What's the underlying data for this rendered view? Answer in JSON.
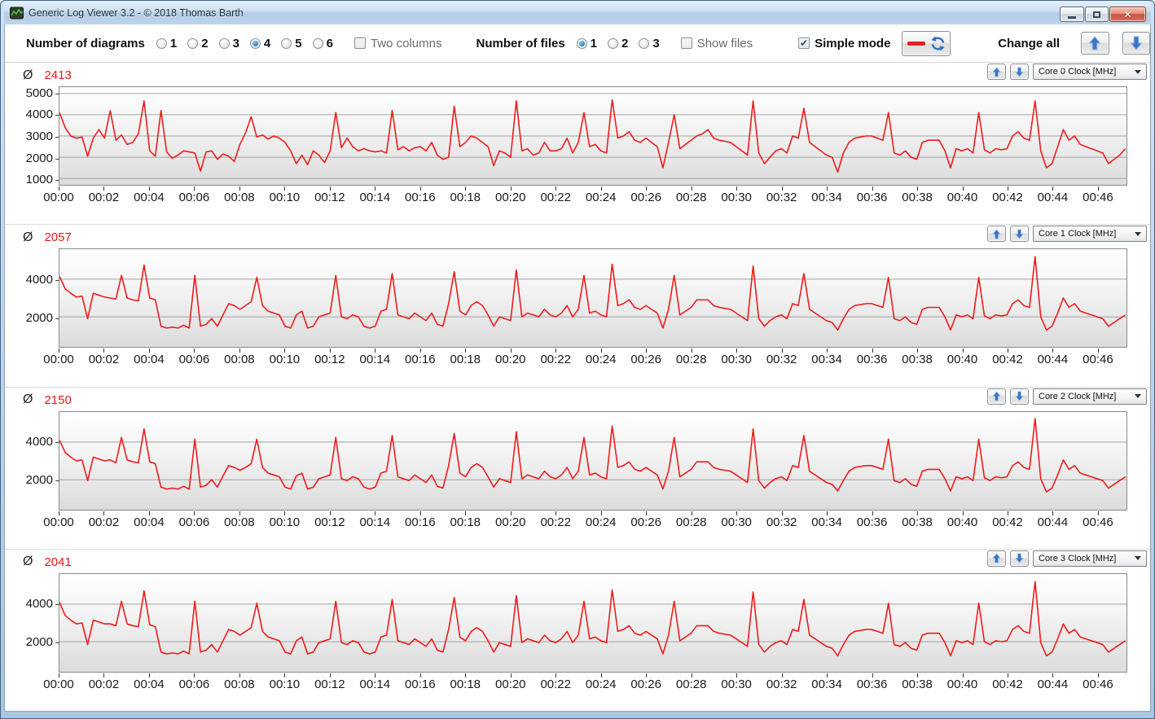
{
  "window": {
    "title": "Generic Log Viewer 3.2 - © 2018 Thomas Barth"
  },
  "toolbar": {
    "diagrams_label": "Number of diagrams",
    "diagram_options": [
      "1",
      "2",
      "3",
      "4",
      "5",
      "6"
    ],
    "diagrams_selected": "4",
    "two_columns_label": "Two columns",
    "two_columns_checked": false,
    "files_label": "Number of files",
    "file_options": [
      "1",
      "2",
      "3"
    ],
    "files_selected": "1",
    "show_files_label": "Show files",
    "show_files_checked": false,
    "simple_mode_label": "Simple mode",
    "simple_mode_checked": true,
    "change_all_label": "Change all"
  },
  "charts_common": {
    "avg_symbol": "Ø",
    "x_total_min": 47.3,
    "x_step_min": 0.25
  },
  "colors": {
    "series_line": "#ee1c1c",
    "avg_value": "#e41b17",
    "gridline": "#a3a3a3",
    "accent_blue": "#3a76c4"
  },
  "chart_data": [
    {
      "type": "line",
      "title": "Core 0 Clock [MHz]",
      "average": "2413",
      "dropdown_value": "Core 0 Clock [MHz]",
      "ylim": [
        700,
        5300
      ],
      "y_ticks": [
        1000,
        2000,
        3000,
        4000,
        5000
      ],
      "x_tick_labels": [
        "00:00",
        "00:02",
        "00:04",
        "00:06",
        "00:08",
        "00:10",
        "00:12",
        "00:14",
        "00:16",
        "00:18",
        "00:20",
        "00:22",
        "00:24",
        "00:26",
        "00:28",
        "00:30",
        "00:32",
        "00:34",
        "00:36",
        "00:38",
        "00:40",
        "00:42",
        "00:44",
        "00:46"
      ],
      "values": [
        4100,
        3400,
        3000,
        2900,
        2950,
        2050,
        2900,
        3300,
        2900,
        4200,
        2800,
        3050,
        2600,
        2700,
        3100,
        4650,
        2300,
        2050,
        4200,
        2250,
        1950,
        2100,
        2300,
        2250,
        2200,
        1350,
        2250,
        2300,
        1900,
        2150,
        2050,
        1800,
        2600,
        3150,
        3900,
        2950,
        3050,
        2850,
        3000,
        2900,
        2700,
        2300,
        1700,
        2100,
        1650,
        2300,
        2100,
        1750,
        2300,
        4100,
        2450,
        2900,
        2500,
        2300,
        2400,
        2300,
        2250,
        2300,
        2200,
        4200,
        2350,
        2500,
        2300,
        2450,
        2500,
        2300,
        2700,
        2100,
        1900,
        2000,
        4400,
        2500,
        2700,
        3000,
        2900,
        2700,
        2500,
        1600,
        2300,
        2200,
        2000,
        4650,
        2300,
        2400,
        2100,
        2200,
        2700,
        2300,
        2300,
        2400,
        2900,
        2200,
        2700,
        4100,
        2500,
        2600,
        2300,
        2200,
        4700,
        2900,
        3000,
        3200,
        2800,
        2700,
        2900,
        2700,
        2500,
        1500,
        2700,
        4000,
        2400,
        2600,
        2800,
        3000,
        3100,
        3300,
        2900,
        2800,
        2750,
        2700,
        2500,
        2300,
        2100,
        4650,
        2200,
        1700,
        2000,
        2300,
        2400,
        2200,
        3000,
        2900,
        4300,
        2700,
        2500,
        2300,
        2100,
        2000,
        1300,
        2200,
        2700,
        2900,
        2950,
        3000,
        3000,
        2900,
        2800,
        4100,
        2200,
        2100,
        2300,
        2000,
        1900,
        2700,
        2800,
        2800,
        2800,
        2300,
        1500,
        2400,
        2300,
        2400,
        2200,
        4100,
        2350,
        2200,
        2400,
        2350,
        2400,
        3000,
        3200,
        2900,
        2800,
        4650,
        2300,
        1500,
        1700,
        2500,
        3300,
        2800,
        3000,
        2600,
        2500,
        2400,
        2300,
        2200,
        1700,
        1900,
        2100,
        2400
      ]
    },
    {
      "type": "line",
      "title": "Core 1 Clock [MHz]",
      "average": "2057",
      "dropdown_value": "Core 1 Clock [MHz]",
      "ylim": [
        400,
        5600
      ],
      "y_ticks": [
        2000,
        4000
      ],
      "x_tick_labels": [
        "00:00",
        "00:02",
        "00:04",
        "00:06",
        "00:08",
        "00:10",
        "00:12",
        "00:14",
        "00:16",
        "00:18",
        "00:20",
        "00:22",
        "00:24",
        "00:26",
        "00:28",
        "00:30",
        "00:32",
        "00:34",
        "00:36",
        "00:38",
        "00:40",
        "00:42",
        "00:44",
        "00:46"
      ],
      "values": [
        4150,
        3500,
        3250,
        3050,
        3100,
        1900,
        3250,
        3150,
        3050,
        3000,
        2950,
        4200,
        3000,
        2900,
        2850,
        4750,
        3000,
        2900,
        1500,
        1400,
        1450,
        1400,
        1550,
        1400,
        4200,
        1500,
        1600,
        1900,
        1500,
        2100,
        2700,
        2600,
        2400,
        2600,
        2800,
        4100,
        2600,
        2300,
        2200,
        2100,
        1500,
        1400,
        2100,
        2300,
        1400,
        1500,
        2000,
        2100,
        2200,
        4200,
        2000,
        1900,
        2100,
        2000,
        1500,
        1400,
        1500,
        2300,
        2400,
        4300,
        2100,
        2000,
        1900,
        2200,
        2000,
        1800,
        2200,
        1600,
        1500,
        2700,
        4400,
        2300,
        2100,
        2600,
        2800,
        2600,
        2100,
        1500,
        2000,
        1900,
        1800,
        4500,
        2000,
        2200,
        2100,
        2000,
        2400,
        2100,
        2000,
        2200,
        2600,
        2000,
        2400,
        4200,
        2200,
        2300,
        2100,
        2000,
        4800,
        2600,
        2700,
        2900,
        2500,
        2400,
        2600,
        2400,
        2200,
        1400,
        2400,
        4200,
        2100,
        2300,
        2500,
        2900,
        2900,
        2900,
        2600,
        2500,
        2450,
        2400,
        2200,
        2000,
        1800,
        4700,
        1900,
        1500,
        1800,
        2000,
        2100,
        1900,
        2700,
        2600,
        4300,
        2400,
        2200,
        2000,
        1800,
        1700,
        1300,
        1900,
        2400,
        2600,
        2650,
        2700,
        2700,
        2600,
        2500,
        4100,
        1900,
        1800,
        2000,
        1700,
        1600,
        2400,
        2500,
        2500,
        2500,
        2000,
        1300,
        2100,
        2000,
        2100,
        1900,
        4100,
        2050,
        1900,
        2100,
        2050,
        2100,
        2700,
        2900,
        2600,
        2500,
        5200,
        2000,
        1300,
        1500,
        2200,
        3000,
        2500,
        2700,
        2300,
        2200,
        2100,
        2000,
        1900,
        1500,
        1700,
        1900,
        2100
      ]
    },
    {
      "type": "line",
      "title": "Core 2 Clock [MHz]",
      "average": "2150",
      "dropdown_value": "Core 2 Clock [MHz]",
      "ylim": [
        400,
        5600
      ],
      "y_ticks": [
        2000,
        4000
      ],
      "x_tick_labels": [
        "00:00",
        "00:02",
        "00:04",
        "00:06",
        "00:08",
        "00:10",
        "00:12",
        "00:14",
        "00:16",
        "00:18",
        "00:20",
        "00:22",
        "00:24",
        "00:26",
        "00:28",
        "00:30",
        "00:32",
        "00:34",
        "00:36",
        "00:38",
        "00:40",
        "00:42",
        "00:44",
        "00:46"
      ],
      "values": [
        4100,
        3450,
        3200,
        3000,
        3050,
        1950,
        3200,
        3100,
        3000,
        3050,
        2900,
        4250,
        3050,
        2950,
        2900,
        4700,
        2950,
        2850,
        1600,
        1500,
        1550,
        1500,
        1650,
        1500,
        4150,
        1600,
        1700,
        2000,
        1600,
        2200,
        2750,
        2650,
        2500,
        2650,
        2850,
        4150,
        2650,
        2350,
        2250,
        2150,
        1600,
        1500,
        2200,
        2350,
        1500,
        1600,
        2050,
        2150,
        2250,
        4250,
        2050,
        1950,
        2150,
        2050,
        1600,
        1500,
        1600,
        2350,
        2450,
        4350,
        2150,
        2050,
        1950,
        2250,
        2050,
        1850,
        2250,
        1650,
        1550,
        2750,
        4450,
        2350,
        2150,
        2650,
        2850,
        2650,
        2150,
        1600,
        2050,
        1950,
        1850,
        4550,
        2050,
        2250,
        2150,
        2050,
        2450,
        2150,
        2050,
        2250,
        2650,
        2050,
        2450,
        4250,
        2250,
        2350,
        2150,
        2050,
        4850,
        2650,
        2750,
        2950,
        2550,
        2450,
        2650,
        2450,
        2250,
        1500,
        2450,
        4250,
        2150,
        2350,
        2550,
        2950,
        2950,
        2950,
        2650,
        2550,
        2500,
        2450,
        2250,
        2050,
        1850,
        4700,
        1950,
        1550,
        1850,
        2050,
        2150,
        1950,
        2750,
        2650,
        4350,
        2450,
        2250,
        2050,
        1850,
        1750,
        1400,
        1950,
        2450,
        2650,
        2700,
        2750,
        2750,
        2650,
        2550,
        4150,
        1950,
        1850,
        2050,
        1750,
        1650,
        2450,
        2550,
        2550,
        2550,
        2050,
        1400,
        2150,
        2050,
        2150,
        1950,
        4150,
        2100,
        1950,
        2150,
        2100,
        2150,
        2750,
        2950,
        2650,
        2550,
        5250,
        2050,
        1350,
        1550,
        2250,
        3050,
        2550,
        2750,
        2350,
        2250,
        2150,
        2050,
        1950,
        1550,
        1750,
        1950,
        2150
      ]
    },
    {
      "type": "line",
      "title": "Core 3 Clock [MHz]",
      "average": "2041",
      "dropdown_value": "Core 3 Clock [MHz]",
      "ylim": [
        400,
        5600
      ],
      "y_ticks": [
        2000,
        4000
      ],
      "x_tick_labels": [
        "00:00",
        "00:02",
        "00:04",
        "00:06",
        "00:08",
        "00:10",
        "00:12",
        "00:14",
        "00:16",
        "00:18",
        "00:20",
        "00:22",
        "00:24",
        "00:26",
        "00:28",
        "00:30",
        "00:32",
        "00:34",
        "00:36",
        "00:38",
        "00:40",
        "00:42",
        "00:44",
        "00:46"
      ],
      "values": [
        4100,
        3400,
        3150,
        2950,
        3000,
        1850,
        3150,
        3050,
        2950,
        2950,
        2850,
        4150,
        2950,
        2850,
        2800,
        4700,
        2900,
        2800,
        1450,
        1350,
        1400,
        1350,
        1500,
        1350,
        4150,
        1450,
        1550,
        1850,
        1450,
        2050,
        2650,
        2550,
        2350,
        2550,
        2750,
        4050,
        2550,
        2250,
        2150,
        2050,
        1450,
        1350,
        2050,
        2250,
        1350,
        1450,
        1950,
        2050,
        2150,
        4150,
        1950,
        1850,
        2050,
        1950,
        1450,
        1350,
        1450,
        2250,
        2350,
        4250,
        2050,
        1950,
        1850,
        2150,
        1950,
        1750,
        2150,
        1550,
        1450,
        2650,
        4350,
        2250,
        2050,
        2550,
        2750,
        2550,
        2050,
        1450,
        1950,
        1850,
        1750,
        4450,
        1950,
        2150,
        2050,
        1950,
        2350,
        2050,
        1950,
        2150,
        2550,
        1950,
        2350,
        4150,
        2150,
        2250,
        2050,
        1950,
        4750,
        2550,
        2650,
        2850,
        2450,
        2350,
        2550,
        2350,
        2150,
        1350,
        2350,
        4150,
        2050,
        2250,
        2450,
        2850,
        2850,
        2850,
        2550,
        2450,
        2400,
        2350,
        2150,
        1950,
        1750,
        4650,
        1850,
        1450,
        1750,
        1950,
        2050,
        1850,
        2650,
        2550,
        4250,
        2350,
        2150,
        1950,
        1750,
        1650,
        1250,
        1850,
        2350,
        2550,
        2600,
        2650,
        2650,
        2550,
        2450,
        4050,
        1850,
        1750,
        1950,
        1650,
        1550,
        2350,
        2450,
        2450,
        2450,
        1950,
        1250,
        2050,
        1950,
        2050,
        1850,
        4050,
        2000,
        1850,
        2050,
        2000,
        2050,
        2650,
        2850,
        2550,
        2450,
        5200,
        1950,
        1250,
        1450,
        2150,
        2950,
        2450,
        2650,
        2250,
        2150,
        2050,
        1950,
        1850,
        1450,
        1650,
        1850,
        2050
      ]
    }
  ]
}
